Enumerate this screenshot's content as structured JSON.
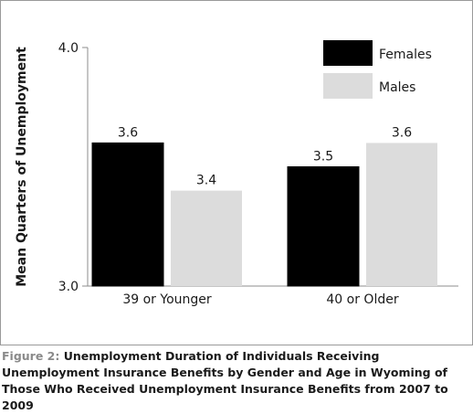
{
  "chart_data": {
    "type": "bar",
    "ylabel": "Mean Quarters of Unemployment",
    "ylim": [
      3.0,
      4.0
    ],
    "yticks": [
      "3.0",
      "4.0"
    ],
    "categories": [
      "39 or Younger",
      "40 or Older"
    ],
    "series": [
      {
        "name": "Females",
        "values": [
          3.6,
          3.5
        ],
        "labels": [
          "3.6",
          "3.5"
        ],
        "color": "#000000"
      },
      {
        "name": "Males",
        "values": [
          3.4,
          3.6
        ],
        "labels": [
          "3.4",
          "3.6"
        ],
        "color": "#dcdcdc"
      }
    ],
    "legend": "top-right",
    "grid": false
  },
  "caption": {
    "label": "Figure 2:",
    "text": "Unemployment Duration of Individuals Receiving Unemployment Insurance Benefits by Gender and Age in Wyoming of Those Who Received Unemployment Insurance Benefits from 2007 to 2009"
  }
}
